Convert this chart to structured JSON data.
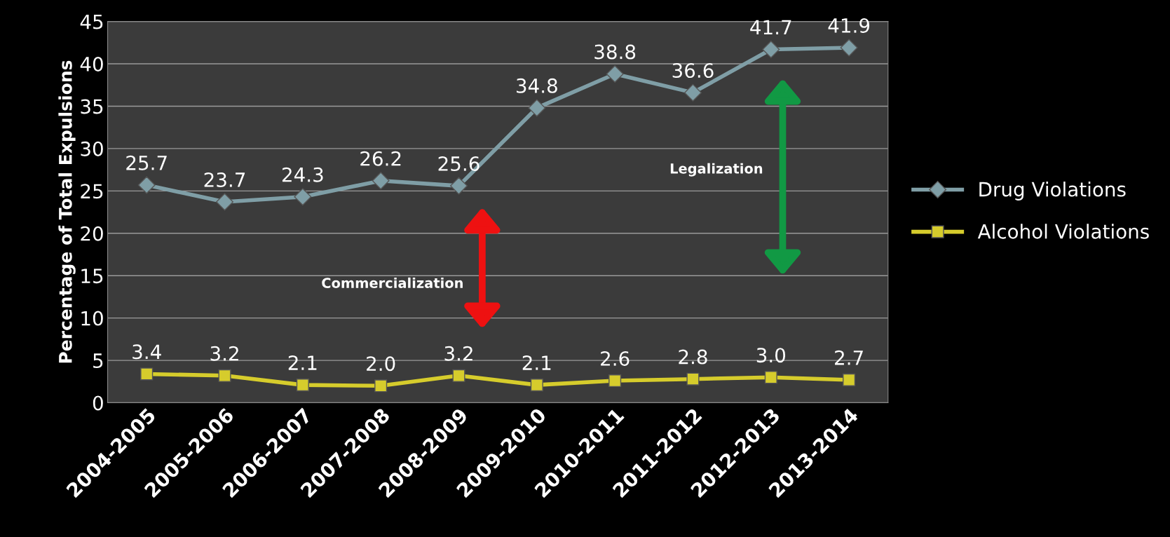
{
  "chart_data": {
    "type": "line",
    "ylabel": "Percentage of Total Expulsions",
    "categories": [
      "2004-2005",
      "2005-2006",
      "2006-2007",
      "2007-2008",
      "2008-2009",
      "2009-2010",
      "2010-2011",
      "2011-2012",
      "2012-2013",
      "2013-2014"
    ],
    "series": [
      {
        "name": "Drug Violations",
        "color": "#7f9ea6",
        "marker": "diamond",
        "values": [
          25.7,
          23.7,
          24.3,
          26.2,
          25.6,
          34.8,
          38.8,
          36.6,
          41.7,
          41.9
        ],
        "value_labels": [
          "25.7",
          "23.7",
          "24.3",
          "26.2",
          "25.6",
          "34.8",
          "38.8",
          "36.6",
          "41.7",
          "41.9"
        ]
      },
      {
        "name": "Alcohol Violations",
        "color": "#d6cc2c",
        "marker": "square",
        "values": [
          3.4,
          3.2,
          2.1,
          2.0,
          3.2,
          2.1,
          2.6,
          2.8,
          3.0,
          2.7
        ],
        "value_labels": [
          "3.4",
          "3.2",
          "2.1",
          "2.0",
          "3.2",
          "2.1",
          "2.6",
          "2.8",
          "3.0",
          "2.7"
        ]
      }
    ],
    "ylim": [
      0,
      45
    ],
    "yticks": [
      0,
      5,
      10,
      15,
      20,
      25,
      30,
      35,
      40,
      45
    ],
    "grid": "y",
    "legend": "right",
    "annotations": [
      "Commercialization",
      "Legalization"
    ]
  }
}
